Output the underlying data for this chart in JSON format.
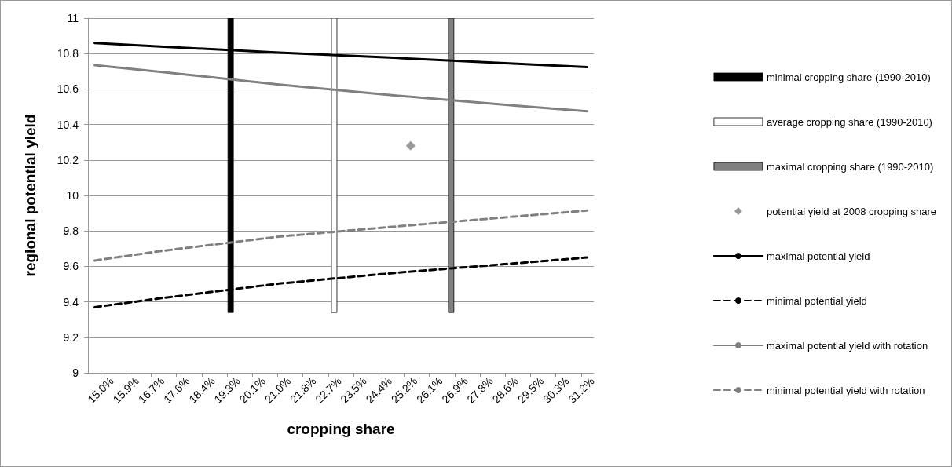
{
  "chart_data": {
    "type": "line",
    "xlabel": "cropping share",
    "ylabel": "regional potential yield",
    "xlim": [
      14.575,
      31.575
    ],
    "ylim": [
      9,
      11
    ],
    "yticks": [
      9,
      9.2,
      9.4,
      9.6,
      9.8,
      10,
      10.2,
      10.4,
      10.6,
      10.8,
      11
    ],
    "xticks": [
      {
        "value": 15,
        "label": "15.0%"
      },
      {
        "value": 15.85,
        "label": "15.9%"
      },
      {
        "value": 16.7,
        "label": "16.7%"
      },
      {
        "value": 17.55,
        "label": "17.6%"
      },
      {
        "value": 18.4,
        "label": "18.4%"
      },
      {
        "value": 19.25,
        "label": "19.3%"
      },
      {
        "value": 20.1,
        "label": "20.1%"
      },
      {
        "value": 20.95,
        "label": "21.0%"
      },
      {
        "value": 21.8,
        "label": "21.8%"
      },
      {
        "value": 22.65,
        "label": "22.7%"
      },
      {
        "value": 23.5,
        "label": "23.5%"
      },
      {
        "value": 24.35,
        "label": "24.4%"
      },
      {
        "value": 25.2,
        "label": "25.2%"
      },
      {
        "value": 26.05,
        "label": "26.1%"
      },
      {
        "value": 26.9,
        "label": "26.9%"
      },
      {
        "value": 27.75,
        "label": "27.8%"
      },
      {
        "value": 28.6,
        "label": "28.6%"
      },
      {
        "value": 29.45,
        "label": "29.5%"
      },
      {
        "value": 30.3,
        "label": "30.3%"
      },
      {
        "value": 31.15,
        "label": "31.2%"
      }
    ],
    "grid": "y",
    "legend": "right",
    "series": [
      {
        "type": "bar",
        "name": "minimal cropping share (1990-2010)",
        "color": "#000000",
        "x": [
          19.37
        ],
        "base": [
          9.34
        ],
        "values": [
          1.66
        ]
      },
      {
        "type": "bar",
        "name": "average cropping share (1990-2010)",
        "color": "#ffffff",
        "x": [
          22.85
        ],
        "base": [
          9.34
        ],
        "values": [
          1.66
        ]
      },
      {
        "type": "bar",
        "name": "maximal cropping share (1990-2010)",
        "color": "#808080",
        "x": [
          26.78
        ],
        "base": [
          9.34
        ],
        "values": [
          1.66
        ]
      },
      {
        "type": "scatter",
        "name": "potential yield at 2008 cropping share",
        "color": "#808080",
        "marker": "diamond",
        "x": [
          25.42
        ],
        "values": [
          10.28
        ]
      },
      {
        "name": "maximal potential yield",
        "color": "#000000",
        "line_style": "solid",
        "marker": "none",
        "x": [
          14.8,
          17,
          21,
          25,
          29,
          31.35
        ],
        "values": [
          10.86,
          10.84,
          10.805,
          10.775,
          10.742,
          10.723
        ]
      },
      {
        "name": "minimal potential yield",
        "color": "#000000",
        "line_style": "dashed",
        "marker": "none",
        "x": [
          14.8,
          17,
          21,
          25,
          29,
          31.35
        ],
        "values": [
          9.37,
          9.42,
          9.503,
          9.565,
          9.618,
          9.65
        ]
      },
      {
        "name": "maximal potential yield with rotation",
        "color": "#808080",
        "line_style": "solid",
        "marker": "none",
        "x": [
          14.8,
          17,
          21,
          25,
          29,
          31.35
        ],
        "values": [
          10.735,
          10.697,
          10.625,
          10.562,
          10.506,
          10.475
        ]
      },
      {
        "name": "minimal potential yield with rotation",
        "color": "#808080",
        "line_style": "dashed",
        "marker": "none",
        "x": [
          14.8,
          17,
          21,
          25,
          29,
          31.35
        ],
        "values": [
          9.633,
          9.686,
          9.768,
          9.826,
          9.882,
          9.915
        ]
      }
    ]
  }
}
